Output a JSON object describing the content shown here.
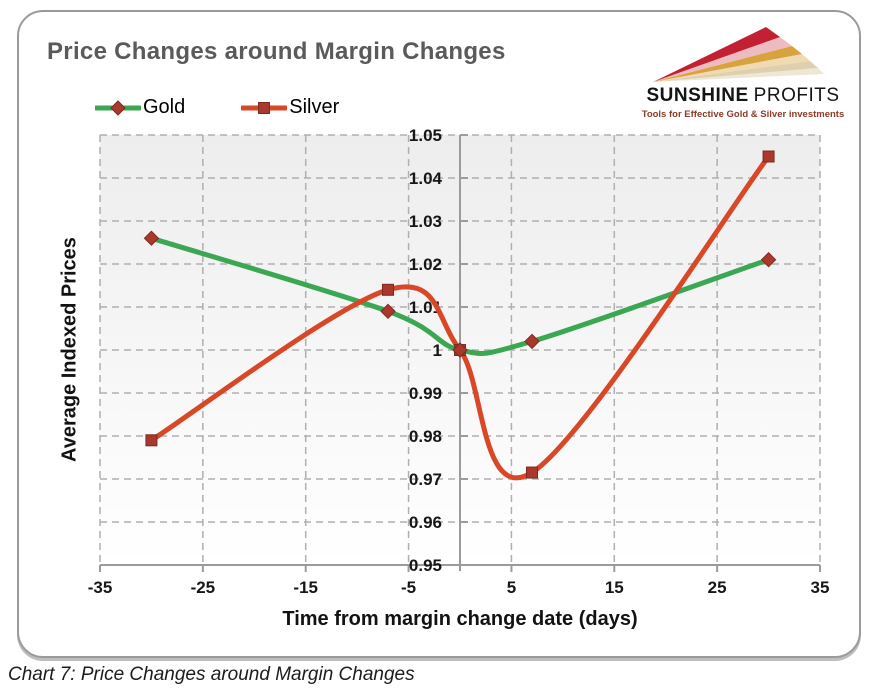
{
  "caption": {
    "text": "Chart 7: Price Changes around Margin Changes"
  },
  "logo": {
    "name_bold": "SUNSHINE",
    "name_light": "PROFITS",
    "tagline": "Tools for Effective Gold & Silver investments"
  },
  "colors": {
    "title": "#595A5C",
    "gold_line": "#3CA753",
    "silver_line": "#D84826",
    "marker": "#A9382D",
    "axis": "#9B9B9B",
    "gridline": "#AFAFAF",
    "tagline": "#8C3B26"
  },
  "chart_data": {
    "type": "line",
    "title": "Price Changes around Margin Changes",
    "xlabel": "Time from margin change date (days)",
    "ylabel": "Average Indexed Prices",
    "xlim": [
      -35,
      35
    ],
    "ylim": [
      0.95,
      1.05
    ],
    "x_ticks": [
      -35,
      -25,
      -15,
      -5,
      5,
      15,
      25,
      35
    ],
    "x_tick_labels": [
      "-35",
      "-25",
      "-15",
      "-5",
      "5",
      "15",
      "25",
      "35"
    ],
    "y_ticks": [
      1.05,
      1.04,
      1.03,
      1.02,
      1.01,
      1.0,
      0.99,
      0.98,
      0.97,
      0.96,
      0.95
    ],
    "y_tick_labels": [
      "1.05",
      "1.04",
      "1.03",
      "1.02",
      "1.01",
      "1",
      "0.99",
      "0.98",
      "0.97",
      "0.96",
      "0.95"
    ],
    "grid": "dashed",
    "zero_day_axis_line": true,
    "legend_position": "top-left",
    "series": [
      {
        "name": "Gold",
        "color": "#3CA753",
        "marker": "diamond",
        "marker_color": "#A9382D",
        "x": [
          -30,
          -7,
          0,
          7,
          30
        ],
        "values": [
          1.026,
          1.009,
          1.0,
          1.002,
          1.021
        ]
      },
      {
        "name": "Silver",
        "color": "#D84826",
        "marker": "square",
        "marker_color": "#A9382D",
        "x": [
          -30,
          -7,
          0,
          7,
          30
        ],
        "values": [
          0.979,
          1.014,
          1.0,
          0.9715,
          1.045
        ]
      }
    ]
  }
}
